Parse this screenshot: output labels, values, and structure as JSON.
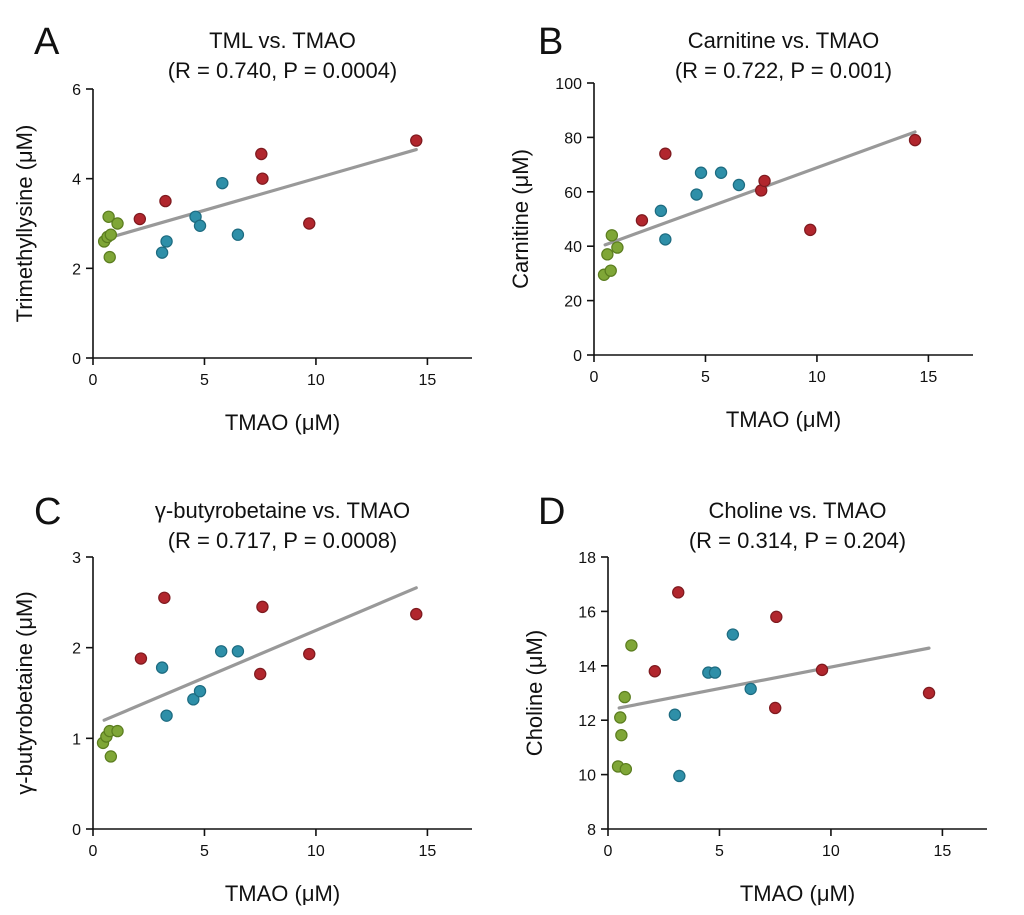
{
  "colors": {
    "green": "#7fa637",
    "blue": "#2e8fa8",
    "red": "#b1262d",
    "green_stroke": "#5b7d1f",
    "blue_stroke": "#1d6b80",
    "red_stroke": "#7e1a1f",
    "regression": "#999999"
  },
  "chart_data": [
    {
      "type": "scatter",
      "panel": "A",
      "title": "TML vs. TMAO",
      "subtitle": "(R = 0.740, P =  0.0004)",
      "xlabel": "TMAO (μM)",
      "ylabel": "Trimethyllysine (μM)",
      "xlim": [
        0,
        17
      ],
      "ylim": [
        0,
        6
      ],
      "xticks": [
        0,
        5,
        10,
        15
      ],
      "yticks": [
        0,
        2,
        4,
        6
      ],
      "regression": [
        [
          0.7,
          2.68
        ],
        [
          14.5,
          4.65
        ]
      ],
      "series": [
        {
          "name": "green",
          "points": [
            [
              0.5,
              2.6
            ],
            [
              0.65,
              2.7
            ],
            [
              0.7,
              3.15
            ],
            [
              0.75,
              2.25
            ],
            [
              0.8,
              2.75
            ],
            [
              1.1,
              3.0
            ]
          ]
        },
        {
          "name": "blue",
          "points": [
            [
              3.1,
              2.35
            ],
            [
              3.3,
              2.6
            ],
            [
              4.6,
              3.15
            ],
            [
              4.8,
              2.95
            ],
            [
              5.8,
              3.9
            ],
            [
              6.5,
              2.75
            ]
          ]
        },
        {
          "name": "red",
          "points": [
            [
              2.1,
              3.1
            ],
            [
              3.25,
              3.5
            ],
            [
              7.55,
              4.55
            ],
            [
              7.6,
              4.0
            ],
            [
              9.7,
              3.0
            ],
            [
              14.5,
              4.85
            ]
          ]
        }
      ]
    },
    {
      "type": "scatter",
      "panel": "B",
      "title": "Carnitine vs. TMAO",
      "subtitle": "(R = 0.722, P =  0.001)",
      "xlabel": "TMAO (μM)",
      "ylabel": "Carnitine (μM)",
      "xlim": [
        0,
        17
      ],
      "ylim": [
        0,
        100
      ],
      "xticks": [
        0,
        5,
        10,
        15
      ],
      "yticks": [
        0,
        20,
        40,
        60,
        80,
        100
      ],
      "regression": [
        [
          0.5,
          40.5
        ],
        [
          14.4,
          82.0
        ]
      ],
      "series": [
        {
          "name": "green",
          "points": [
            [
              0.45,
              29.5
            ],
            [
              0.6,
              37.0
            ],
            [
              0.75,
              31.0
            ],
            [
              0.8,
              44.0
            ],
            [
              1.05,
              39.5
            ]
          ]
        },
        {
          "name": "blue",
          "points": [
            [
              3.0,
              53.0
            ],
            [
              3.2,
              42.5
            ],
            [
              4.6,
              59.0
            ],
            [
              4.8,
              67.0
            ],
            [
              5.7,
              67.0
            ],
            [
              6.5,
              62.5
            ]
          ]
        },
        {
          "name": "red",
          "points": [
            [
              2.15,
              49.5
            ],
            [
              3.2,
              74.0
            ],
            [
              7.5,
              60.5
            ],
            [
              7.65,
              64.0
            ],
            [
              9.7,
              46.0
            ],
            [
              14.4,
              79.0
            ]
          ]
        }
      ]
    },
    {
      "type": "scatter",
      "panel": "C",
      "title": "γ-butyrobetaine vs. TMAO",
      "subtitle": "(R = 0.717, P =  0.0008)",
      "xlabel": "TMAO (μM)",
      "ylabel": "γ-butyrobetaine (μM)",
      "xlim": [
        0,
        17
      ],
      "ylim": [
        0,
        3
      ],
      "xticks": [
        0,
        5,
        10,
        15
      ],
      "yticks": [
        0,
        1,
        2,
        3
      ],
      "regression": [
        [
          0.5,
          1.2
        ],
        [
          14.5,
          2.66
        ]
      ],
      "series": [
        {
          "name": "green",
          "points": [
            [
              0.45,
              0.95
            ],
            [
              0.6,
              1.02
            ],
            [
              0.75,
              1.08
            ],
            [
              0.8,
              0.8
            ],
            [
              1.1,
              1.08
            ]
          ]
        },
        {
          "name": "blue",
          "points": [
            [
              3.1,
              1.78
            ],
            [
              3.3,
              1.25
            ],
            [
              4.5,
              1.43
            ],
            [
              4.8,
              1.52
            ],
            [
              5.75,
              1.96
            ],
            [
              6.5,
              1.96
            ]
          ]
        },
        {
          "name": "red",
          "points": [
            [
              2.15,
              1.88
            ],
            [
              3.2,
              2.55
            ],
            [
              7.5,
              1.71
            ],
            [
              7.6,
              2.45
            ],
            [
              9.7,
              1.93
            ],
            [
              14.5,
              2.37
            ]
          ]
        }
      ]
    },
    {
      "type": "scatter",
      "panel": "D",
      "title": "Choline vs. TMAO",
      "subtitle": "(R = 0.314, P =  0.204)",
      "xlabel": "TMAO (μM)",
      "ylabel": "Choline (μM)",
      "xlim": [
        0,
        17
      ],
      "ylim": [
        8,
        18
      ],
      "xticks": [
        0,
        5,
        10,
        15
      ],
      "yticks": [
        8,
        10,
        12,
        14,
        16,
        18
      ],
      "regression": [
        [
          0.5,
          12.45
        ],
        [
          14.4,
          14.65
        ]
      ],
      "series": [
        {
          "name": "green",
          "points": [
            [
              0.45,
              10.3
            ],
            [
              0.55,
              12.1
            ],
            [
              0.6,
              11.45
            ],
            [
              0.75,
              12.85
            ],
            [
              0.8,
              10.2
            ],
            [
              1.05,
              14.75
            ]
          ]
        },
        {
          "name": "blue",
          "points": [
            [
              3.0,
              12.2
            ],
            [
              3.2,
              9.95
            ],
            [
              4.5,
              13.75
            ],
            [
              4.8,
              13.75
            ],
            [
              5.6,
              15.15
            ],
            [
              6.4,
              13.15
            ]
          ]
        },
        {
          "name": "red",
          "points": [
            [
              2.1,
              13.8
            ],
            [
              3.15,
              16.7
            ],
            [
              7.5,
              12.45
            ],
            [
              7.55,
              15.8
            ],
            [
              9.6,
              13.85
            ],
            [
              14.4,
              13.0
            ]
          ]
        }
      ]
    }
  ]
}
